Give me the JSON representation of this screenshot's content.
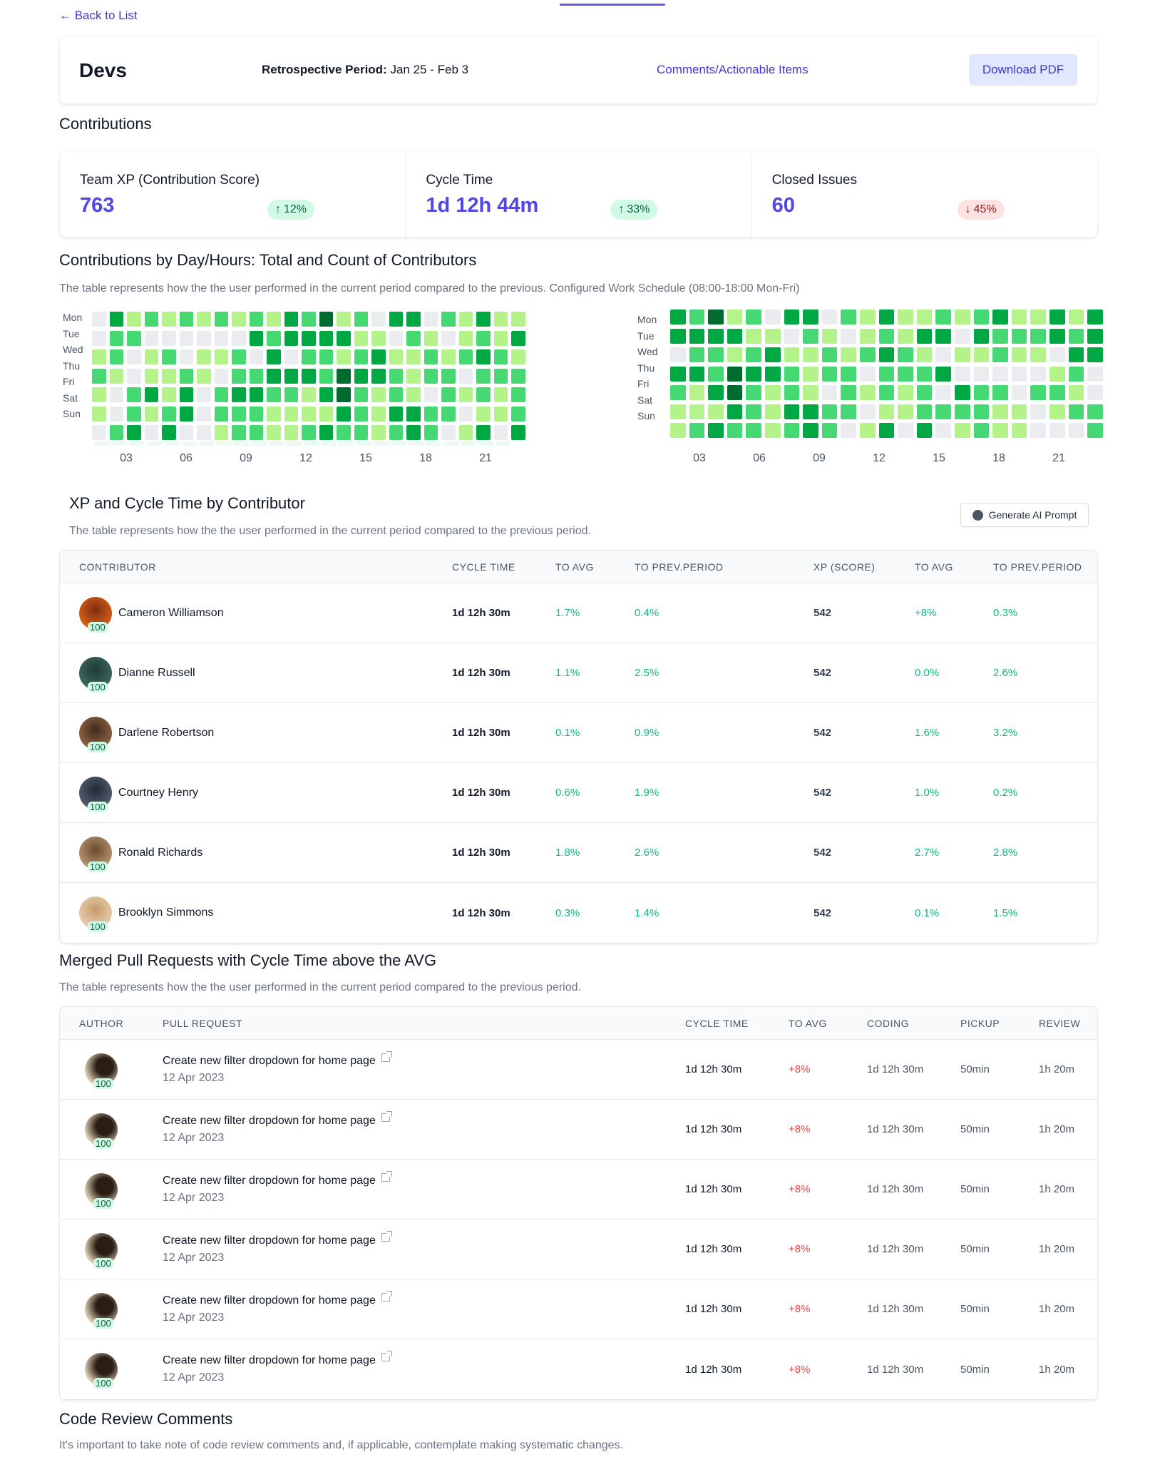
{
  "nav": {
    "back_label": "← Back to List"
  },
  "header": {
    "title": "Devs",
    "period_label": "Retrospective Period:",
    "period_value": " Jan 25  - Feb 3",
    "comments_link": "Comments/Actionable Items",
    "download_label": "Download PDF"
  },
  "contributions": {
    "title": "Contributions",
    "stats": [
      {
        "label": "Team XP (Contribution Score)",
        "value": "763",
        "change": "12%",
        "direction": "up"
      },
      {
        "label": "Cycle Time",
        "value": "1d 12h 44m",
        "change": "33%",
        "direction": "up"
      },
      {
        "label": "Closed Issues",
        "value": "60",
        "change": "45%",
        "direction": "down"
      }
    ]
  },
  "heatmap_section": {
    "title": "Contributions by Day/Hours: Total and Count of Contributors",
    "description": "The table represents how the the user performed in the current period compared to the previous. Configured Work Schedule (08:00-18:00 Mon-Fri)",
    "days": [
      "Mon",
      "Tue",
      "Wed",
      "Thu",
      "Fri",
      "Sat",
      "Sun"
    ],
    "ticks": [
      "03",
      "06",
      "09",
      "12",
      "15",
      "18",
      "21"
    ],
    "colors": [
      "#ebecf0",
      "#b3f38a",
      "#46d872",
      "#00a843",
      "#006b2e"
    ],
    "left": [
      [
        0,
        3,
        1,
        2,
        1,
        2,
        1,
        2,
        1,
        2,
        1,
        3,
        2,
        4,
        1,
        2,
        0,
        3,
        3,
        0,
        2,
        1,
        3,
        1,
        1
      ],
      [
        0,
        2,
        2,
        0,
        0,
        0,
        0,
        0,
        0,
        3,
        2,
        3,
        3,
        3,
        3,
        1,
        1,
        0,
        2,
        1,
        0,
        1,
        2,
        1,
        3
      ],
      [
        1,
        2,
        0,
        1,
        2,
        0,
        1,
        1,
        2,
        0,
        3,
        0,
        2,
        2,
        1,
        2,
        3,
        1,
        1,
        2,
        1,
        2,
        3,
        2,
        1
      ],
      [
        2,
        1,
        0,
        1,
        1,
        2,
        1,
        0,
        2,
        2,
        3,
        3,
        3,
        2,
        4,
        3,
        3,
        2,
        1,
        2,
        2,
        0,
        2,
        2,
        2
      ],
      [
        1,
        0,
        2,
        3,
        1,
        3,
        0,
        2,
        3,
        3,
        2,
        2,
        1,
        3,
        4,
        2,
        1,
        2,
        1,
        0,
        2,
        1,
        2,
        1,
        2
      ],
      [
        1,
        0,
        2,
        1,
        2,
        3,
        0,
        2,
        2,
        2,
        1,
        1,
        1,
        1,
        3,
        2,
        1,
        3,
        3,
        2,
        2,
        0,
        1,
        1,
        2
      ],
      [
        0,
        2,
        3,
        0,
        3,
        0,
        0,
        1,
        2,
        2,
        1,
        1,
        2,
        3,
        2,
        2,
        1,
        2,
        3,
        2,
        0,
        1,
        3,
        0,
        3
      ]
    ],
    "right": [
      [
        3,
        2,
        4,
        1,
        2,
        0,
        3,
        3,
        0,
        2,
        1,
        3,
        1,
        1,
        2,
        1,
        2,
        3,
        1,
        1,
        3,
        1,
        3
      ],
      [
        3,
        3,
        3,
        3,
        1,
        1,
        0,
        2,
        1,
        0,
        1,
        2,
        1,
        3,
        3,
        0,
        3,
        2,
        2,
        2,
        3,
        2,
        3
      ],
      [
        0,
        2,
        2,
        1,
        2,
        3,
        1,
        1,
        2,
        1,
        2,
        3,
        2,
        1,
        0,
        1,
        1,
        2,
        1,
        1,
        0,
        3,
        3
      ],
      [
        3,
        3,
        2,
        4,
        3,
        3,
        2,
        1,
        2,
        2,
        0,
        2,
        2,
        2,
        3,
        0,
        0,
        0,
        0,
        0,
        1,
        2,
        0
      ],
      [
        2,
        1,
        3,
        4,
        2,
        1,
        2,
        1,
        0,
        2,
        1,
        2,
        1,
        2,
        0,
        3,
        2,
        2,
        0,
        2,
        2,
        1,
        0
      ],
      [
        1,
        1,
        1,
        3,
        2,
        1,
        3,
        3,
        2,
        2,
        0,
        1,
        1,
        2,
        2,
        2,
        2,
        1,
        1,
        0,
        1,
        2,
        2
      ],
      [
        1,
        2,
        3,
        2,
        2,
        1,
        2,
        3,
        2,
        0,
        1,
        3,
        0,
        3,
        0,
        1,
        2,
        1,
        1,
        0,
        0,
        0,
        2
      ]
    ]
  },
  "contributors": {
    "title": "XP and Cycle Time by Contributor",
    "description": "The table represents how the the user performed in the current period compared to the previous period.",
    "ai_button": "Generate AI Prompt",
    "columns": [
      "CONTRIBUTOR",
      "CYCLE TIME",
      "TO AVG",
      "TO PREV.PERIOD",
      "XP (SCORE)",
      "TO AVG",
      "TO PREV.PERIOD"
    ],
    "rows": [
      {
        "name": "Cameron Williamson",
        "badge": "100",
        "cycle": "1d 12h 30m",
        "cycle_avg": "1.7%",
        "cycle_prev": "0.4%",
        "xp": "542",
        "xp_avg": "+8%",
        "xp_prev": "0.3%"
      },
      {
        "name": "Dianne Russell",
        "badge": "100",
        "cycle": "1d 12h 30m",
        "cycle_avg": "1.1%",
        "cycle_prev": "2.5%",
        "xp": "542",
        "xp_avg": "0.0%",
        "xp_prev": "2.6%"
      },
      {
        "name": "Darlene Robertson",
        "badge": "100",
        "cycle": "1d 12h 30m",
        "cycle_avg": "0.1%",
        "cycle_prev": "0.9%",
        "xp": "542",
        "xp_avg": "1.6%",
        "xp_prev": "3.2%"
      },
      {
        "name": "Courtney Henry",
        "badge": "100",
        "cycle": "1d 12h 30m",
        "cycle_avg": "0.6%",
        "cycle_prev": "1.9%",
        "xp": "542",
        "xp_avg": "1.0%",
        "xp_prev": "0.2%"
      },
      {
        "name": "Ronald Richards",
        "badge": "100",
        "cycle": "1d 12h 30m",
        "cycle_avg": "1.8%",
        "cycle_prev": "2.6%",
        "xp": "542",
        "xp_avg": "2.7%",
        "xp_prev": "2.8%"
      },
      {
        "name": "Brooklyn Simmons",
        "badge": "100",
        "cycle": "1d 12h 30m",
        "cycle_avg": "0.3%",
        "cycle_prev": "1.4%",
        "xp": "542",
        "xp_avg": "0.1%",
        "xp_prev": "1.5%"
      }
    ]
  },
  "pull_requests": {
    "title": "Merged Pull Requests with Cycle Time above the AVG",
    "description": "The table represents how the the user performed in the current period compared to the previous period.",
    "columns": [
      "AUTHOR",
      "PULL REQUEST",
      "CYCLE TIME",
      "TO AVG",
      "CODING",
      "PICKUP",
      "REVIEW"
    ],
    "rows": [
      {
        "badge": "100",
        "title": "Create new filter dropdown for home page",
        "date": "12 Apr 2023",
        "cycle": "1d 12h 30m",
        "avg": "+8%",
        "coding": "1d 12h 30m",
        "pickup": "50min",
        "review": "1h 20m"
      },
      {
        "badge": "100",
        "title": "Create new filter dropdown for home page",
        "date": "12 Apr 2023",
        "cycle": "1d 12h 30m",
        "avg": "+8%",
        "coding": "1d 12h 30m",
        "pickup": "50min",
        "review": "1h 20m"
      },
      {
        "badge": "100",
        "title": "Create new filter dropdown for home page",
        "date": "12 Apr 2023",
        "cycle": "1d 12h 30m",
        "avg": "+8%",
        "coding": "1d 12h 30m",
        "pickup": "50min",
        "review": "1h 20m"
      },
      {
        "badge": "100",
        "title": "Create new filter dropdown for home page",
        "date": "12 Apr 2023",
        "cycle": "1d 12h 30m",
        "avg": "+8%",
        "coding": "1d 12h 30m",
        "pickup": "50min",
        "review": "1h 20m"
      },
      {
        "badge": "100",
        "title": "Create new filter dropdown for home page",
        "date": "12 Apr 2023",
        "cycle": "1d 12h 30m",
        "avg": "+8%",
        "coding": "1d 12h 30m",
        "pickup": "50min",
        "review": "1h 20m"
      },
      {
        "badge": "100",
        "title": "Create new filter dropdown for home page",
        "date": "12 Apr 2023",
        "cycle": "1d 12h 30m",
        "avg": "+8%",
        "coding": "1d 12h 30m",
        "pickup": "50min",
        "review": "1h 20m"
      }
    ]
  },
  "code_review": {
    "title": "Code Review Comments",
    "description": "It's important to take note of code review comments and, if applicable, contemplate making systematic changes."
  }
}
